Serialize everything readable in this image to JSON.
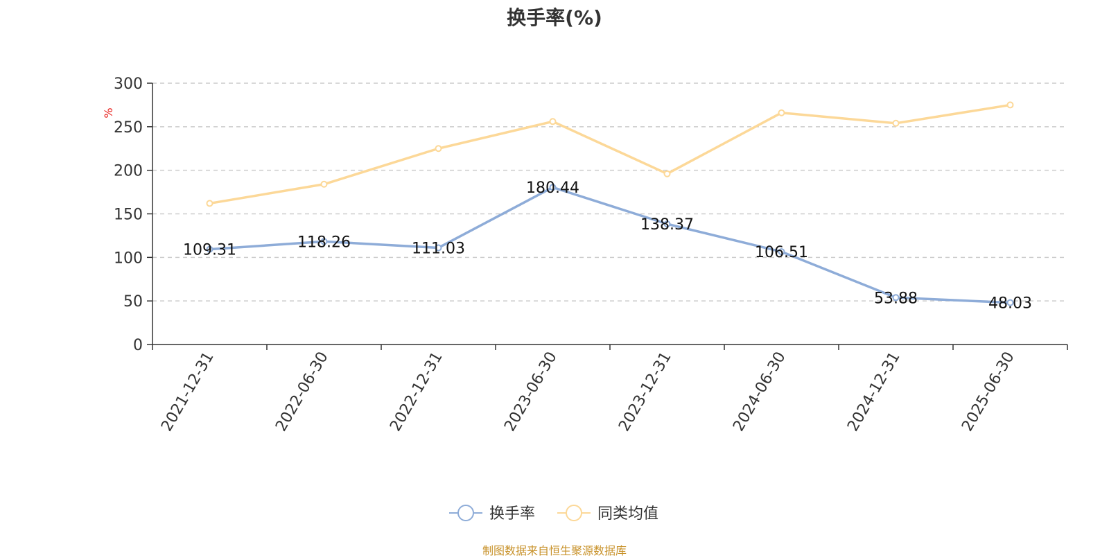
{
  "chart_data": {
    "type": "line",
    "title": "换手率(%)",
    "ylabel": "%",
    "xlabel": "",
    "categories": [
      "2021-12-31",
      "2022-06-30",
      "2022-12-31",
      "2023-06-30",
      "2023-12-31",
      "2024-06-30",
      "2024-12-31",
      "2025-06-30"
    ],
    "series": [
      {
        "name": "换手率",
        "values": [
          109.31,
          118.26,
          111.03,
          180.44,
          138.37,
          106.51,
          53.88,
          48.03
        ],
        "color": "#8eacd8",
        "show_labels": true
      },
      {
        "name": "同类均值",
        "values": [
          162,
          184,
          225,
          256,
          196,
          266,
          254,
          275
        ],
        "color": "#fcd898",
        "show_labels": false
      }
    ],
    "ylim": [
      0,
      300
    ],
    "yticks": [
      0,
      50,
      100,
      150,
      200,
      250,
      300
    ],
    "grid": true,
    "legend_position": "bottom"
  },
  "footer": {
    "source": "制图数据来自恒生聚源数据库"
  },
  "colors": {
    "axis": "#333333",
    "grid": "#cccccc",
    "ylabel": "#e8211d",
    "source": "#c8922a"
  }
}
